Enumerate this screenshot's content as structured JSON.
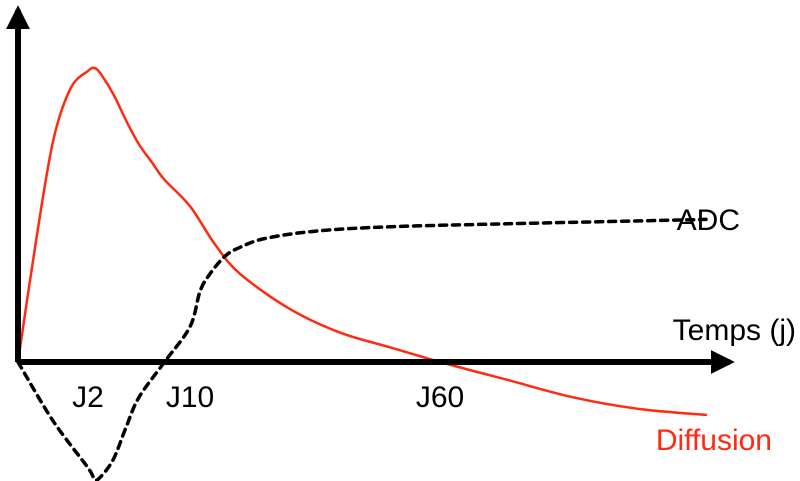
{
  "chart_data": {
    "type": "line",
    "title": "",
    "xlabel": "Temps (j)",
    "ylabel": "",
    "x_ticks": [
      {
        "label": "J2",
        "x": 2
      },
      {
        "label": "J10",
        "x": 10
      },
      {
        "label": "J60",
        "x": 60
      }
    ],
    "grid": false,
    "legend": "none",
    "series": [
      {
        "name": "Diffusion",
        "color": "#ff2a12",
        "style": "solid",
        "points": [
          [
            0,
            0.0
          ],
          [
            0.5,
            0.4
          ],
          [
            1,
            0.75
          ],
          [
            1.5,
            0.93
          ],
          [
            2,
            0.99
          ],
          [
            2.5,
            1.0
          ],
          [
            3,
            0.98
          ],
          [
            4,
            0.91
          ],
          [
            5,
            0.82
          ],
          [
            6,
            0.74
          ],
          [
            7,
            0.68
          ],
          [
            8,
            0.62
          ],
          [
            10,
            0.53
          ],
          [
            15,
            0.4
          ],
          [
            20,
            0.3
          ],
          [
            30,
            0.18
          ],
          [
            40,
            0.1
          ],
          [
            50,
            0.05
          ],
          [
            60,
            0.0
          ],
          [
            70,
            -0.06
          ],
          [
            80,
            -0.12
          ],
          [
            90,
            -0.16
          ],
          [
            100,
            -0.18
          ]
        ]
      },
      {
        "name": "ADC",
        "color": "#000000",
        "style": "dashed",
        "points": [
          [
            0,
            0.0
          ],
          [
            1,
            -0.2
          ],
          [
            2,
            -0.36
          ],
          [
            2.5,
            -0.4
          ],
          [
            3,
            -0.39
          ],
          [
            4,
            -0.33
          ],
          [
            5,
            -0.22
          ],
          [
            6,
            -0.12
          ],
          [
            8,
            0.0
          ],
          [
            10,
            0.12
          ],
          [
            12,
            0.24
          ],
          [
            14,
            0.3
          ],
          [
            17,
            0.36
          ],
          [
            20,
            0.39
          ],
          [
            25,
            0.42
          ],
          [
            35,
            0.445
          ],
          [
            50,
            0.46
          ],
          [
            70,
            0.47
          ],
          [
            90,
            0.48
          ],
          [
            100,
            0.485
          ]
        ]
      }
    ]
  }
}
